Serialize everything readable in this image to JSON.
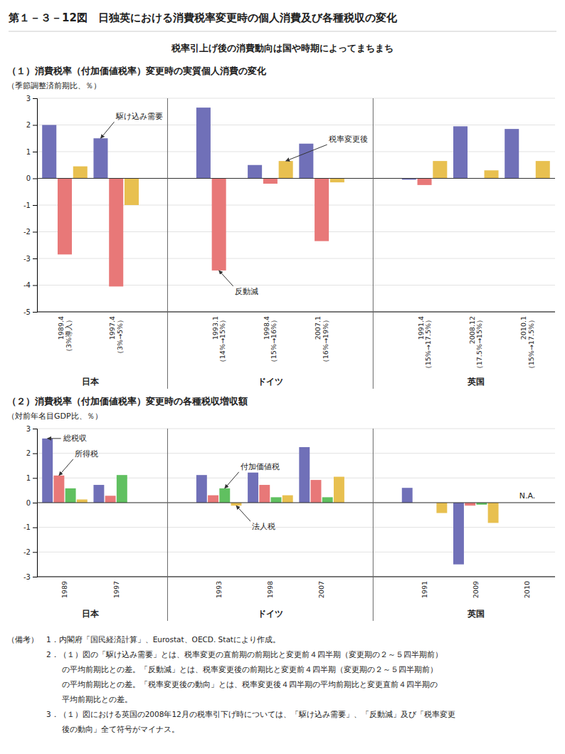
{
  "title": "第１－３－12図　日独英における消費税率変更時の個人消費及び各種税収の変化",
  "subtitle": "税率引上げ後の消費動向は国や時期によってまちまち",
  "footnotes": [
    "（備考）　1．内閣府「国民経済計算」、Eurostat、OECD. Statにより作成。",
    "　　　　　2．（１）図の「駆け込み需要」とは、税率変更の直前期の前期比と変更前４四半期（変更期の２～５四半期前）",
    "　　　　　　　の平均前期比との差。「反動減」とは、税率変更後の前期比と変更前４四半期（変更期の２～５四半期前）",
    "　　　　　　　の平均前期比との差。「税率変更後の動向」とは、税率変更後４四半期の平均前期比と変更直前４四半期の",
    "　　　　　　　平均前期比との差。",
    "　　　　　3．（１）図における英国の2008年12月の税率引下げ時については、「駆け込み需要」、「反動減」及び「税率変更",
    "　　　　　　　後の動向」全て符号がマイナス。"
  ],
  "chart_data": [
    {
      "type": "bar",
      "title": "（１）消費税率（付加価値税率）変更時の実質個人消費の変化",
      "ylabel": "（季節調整済前期比、％）",
      "categories": [
        "1989.4\n（3%導入）",
        "1997.4\n（3%→5%）",
        "1993.1\n（14%→15%）",
        "1998.4\n（15%→16%）",
        "2007.1\n（16%→19%）",
        "1991.4\n（15%→17.5%）",
        "2008.12\n（17.5%→15%）",
        "2010.1\n（15%→17.5%）"
      ],
      "category_groups": [
        {
          "label": "日本",
          "categories": [
            0,
            1
          ]
        },
        {
          "label": "ドイツ",
          "categories": [
            2,
            3,
            4
          ]
        },
        {
          "label": "英国",
          "categories": [
            5,
            6,
            7
          ]
        }
      ],
      "series": [
        {
          "color": "#7070b8",
          "values": [
            2.0,
            1.5,
            2.65,
            0.5,
            1.3,
            -0.05,
            1.95,
            1.85
          ]
        },
        {
          "color": "#e87878",
          "values": [
            -2.85,
            -4.05,
            -3.45,
            -0.2,
            -2.35,
            -0.25,
            null,
            null
          ]
        },
        {
          "color": "#e8c050",
          "values": [
            0.45,
            -1.0,
            null,
            0.65,
            -0.15,
            0.65,
            0.3,
            0.65
          ]
        }
      ],
      "ylim": [
        -5,
        3
      ],
      "yticks": [
        -5,
        -4,
        -3,
        -2,
        -1,
        0,
        1,
        2,
        3
      ],
      "grid": true,
      "annotations": [
        {
          "text": "駆け込み需要",
          "series": 0,
          "category": 1
        },
        {
          "text": "反動減",
          "series": 1,
          "category": 2
        },
        {
          "text": "税率変更後",
          "series": 2,
          "category": 3
        }
      ]
    },
    {
      "type": "bar",
      "title": "（２）消費税率（付加価値税率）変更時の各種税収増収額",
      "ylabel": "（対前年名目GDP比、％）",
      "categories": [
        "1989",
        "1997",
        "1993",
        "1998",
        "2007",
        "1991",
        "2009",
        "2010"
      ],
      "category_groups": [
        {
          "label": "日本",
          "categories": [
            0,
            1
          ]
        },
        {
          "label": "ドイツ",
          "categories": [
            2,
            3,
            4
          ]
        },
        {
          "label": "英国",
          "categories": [
            5,
            6,
            7
          ]
        }
      ],
      "series": [
        {
          "color": "#7070b8",
          "values": [
            2.6,
            0.72,
            1.12,
            1.22,
            2.25,
            0.6,
            -2.5,
            null
          ]
        },
        {
          "color": "#e87878",
          "values": [
            1.1,
            0.28,
            0.3,
            0.72,
            0.92,
            null,
            -0.12,
            null
          ]
        },
        {
          "color": "#60c060",
          "values": [
            0.58,
            1.12,
            0.58,
            0.22,
            0.22,
            null,
            -0.08,
            null
          ]
        },
        {
          "color": "#e8c050",
          "values": [
            0.13,
            null,
            -0.12,
            0.3,
            1.05,
            -0.42,
            -0.82,
            null
          ]
        }
      ],
      "ylim": [
        -3,
        3
      ],
      "yticks": [
        -3,
        -2,
        -1,
        0,
        1,
        2,
        3
      ],
      "grid": true,
      "annotations": [
        {
          "text": "N.A.",
          "category": 7
        },
        {
          "text": "総税収",
          "series": 0,
          "category": 0
        },
        {
          "text": "所得税",
          "series": 1,
          "category": 0
        },
        {
          "text": "付加価値税",
          "series": 2,
          "category": 2
        },
        {
          "text": "法人税",
          "series": 3,
          "category": 2
        }
      ]
    }
  ]
}
